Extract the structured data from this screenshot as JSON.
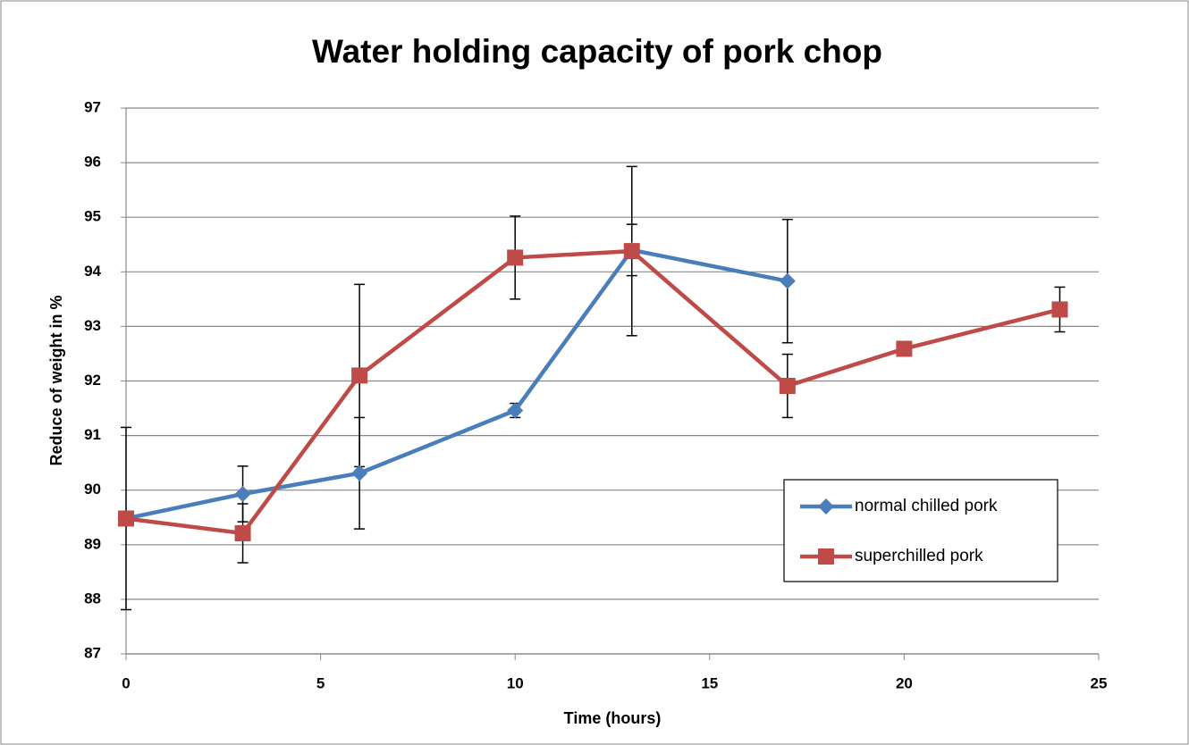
{
  "chart_data": {
    "type": "line",
    "title": "Water holding capacity of pork chop",
    "xlabel": "Time (hours)",
    "ylabel": "Reduce of weight in %",
    "xlim": [
      0,
      25
    ],
    "xticks": [
      0,
      5,
      10,
      15,
      20,
      25
    ],
    "ylim": [
      87,
      97
    ],
    "yticks": [
      87,
      88,
      89,
      90,
      91,
      92,
      93,
      94,
      95,
      96,
      97
    ],
    "grid": true,
    "legend": "lower right",
    "series": [
      {
        "name": "normal chilled pork",
        "color": "#4a7ebb",
        "marker": "diamond",
        "x": [
          0,
          3,
          6,
          10,
          13,
          17
        ],
        "values": [
          89.48,
          89.93,
          90.31,
          91.46,
          94.4,
          93.83
        ],
        "errors": [
          1.67,
          0.51,
          1.02,
          0.13,
          0.47,
          1.13
        ]
      },
      {
        "name": "superchilled pork",
        "color": "#be4b48",
        "marker": "square",
        "x": [
          0,
          3,
          6,
          10,
          13,
          17,
          20,
          24
        ],
        "values": [
          89.48,
          89.21,
          92.1,
          94.26,
          94.38,
          91.91,
          92.59,
          93.31
        ],
        "errors": [
          0,
          0.54,
          1.67,
          0.76,
          1.55,
          0.58,
          0,
          0.41
        ]
      }
    ]
  }
}
